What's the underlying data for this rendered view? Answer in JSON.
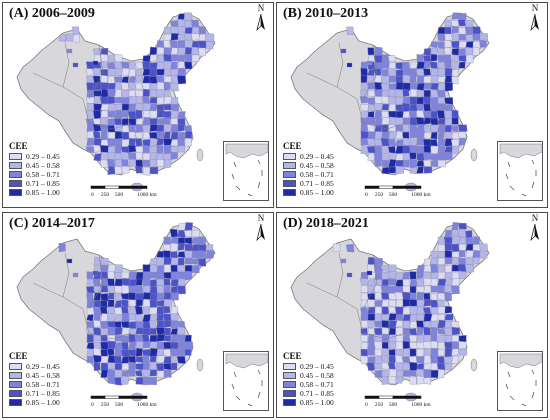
{
  "figure": {
    "panels": [
      {
        "id": "A",
        "title": "(A) 2006–2009"
      },
      {
        "id": "B",
        "title": "(B) 2010–2013"
      },
      {
        "id": "C",
        "title": "(C) 2014–2017"
      },
      {
        "id": "D",
        "title": "(D) 2018–2021"
      }
    ]
  },
  "legend": {
    "title": "CEE",
    "classes": [
      {
        "label": "0.29 – 0.45",
        "color": "#dcdcf2"
      },
      {
        "label": "0.45 – 0.58",
        "color": "#b4b6ea"
      },
      {
        "label": "0.58 – 0.71",
        "color": "#7f83db"
      },
      {
        "label": "0.71 – 0.85",
        "color": "#4c53c8"
      },
      {
        "label": "0.85 – 1.00",
        "color": "#1f2aa5"
      }
    ]
  },
  "scale": {
    "ticks": [
      "0",
      "250",
      "500",
      "1000 km"
    ]
  },
  "north_arrow": {
    "label": "N"
  },
  "colors": {
    "no_data": "#d8d8dc",
    "border": "#7a7a7a"
  }
}
